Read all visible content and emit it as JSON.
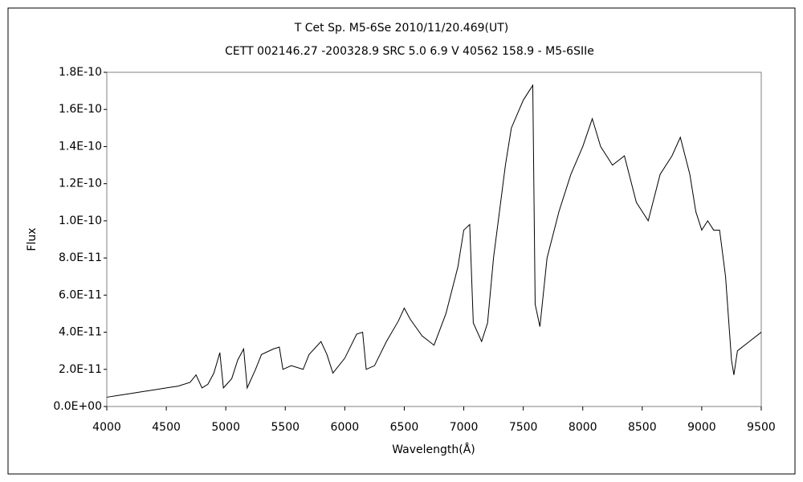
{
  "chart_data": {
    "type": "line",
    "title": "T Cet     Sp. M5-6Se    2010/11/20.469(UT)",
    "subtitle": "CETT 002146.27 -200328.9 SRC 5.0 6.9 V 40562 158.9 - M5-6SIIe",
    "x_label": "Wavelength(Å)",
    "y_label": "Flux",
    "x": [
      4000,
      4100,
      4200,
      4300,
      4400,
      4500,
      4600,
      4700,
      4750,
      4800,
      4850,
      4900,
      4950,
      4980,
      5050,
      5100,
      5150,
      5180,
      5250,
      5300,
      5400,
      5450,
      5480,
      5550,
      5650,
      5700,
      5800,
      5850,
      5900,
      6000,
      6100,
      6150,
      6180,
      6250,
      6350,
      6450,
      6500,
      6550,
      6650,
      6750,
      6850,
      6950,
      7000,
      7050,
      7080,
      7150,
      7200,
      7250,
      7350,
      7400,
      7500,
      7580,
      7600,
      7640,
      7700,
      7800,
      7900,
      8000,
      8080,
      8150,
      8250,
      8350,
      8450,
      8550,
      8650,
      8750,
      8820,
      8900,
      8950,
      9000,
      9050,
      9100,
      9150,
      9200,
      9250,
      9270,
      9300,
      9400,
      9500
    ],
    "series": [
      {
        "name": "Flux",
        "color": "#000000",
        "values": [
          5e-12,
          6e-12,
          7e-12,
          8e-12,
          9e-12,
          1e-11,
          1.1e-11,
          1.3e-11,
          1.7e-11,
          1e-11,
          1.2e-11,
          1.8e-11,
          2.9e-11,
          1e-11,
          1.5e-11,
          2.5e-11,
          3.1e-11,
          1e-11,
          2e-11,
          2.8e-11,
          3.1e-11,
          3.2e-11,
          2e-11,
          2.2e-11,
          2e-11,
          2.8e-11,
          3.5e-11,
          2.8e-11,
          1.8e-11,
          2.6e-11,
          3.9e-11,
          4e-11,
          2e-11,
          2.2e-11,
          3.5e-11,
          4.6e-11,
          5.3e-11,
          4.7e-11,
          3.8e-11,
          3.3e-11,
          5e-11,
          7.5e-11,
          9.5e-11,
          9.8e-11,
          4.5e-11,
          3.5e-11,
          4.5e-11,
          8e-11,
          1.3e-10,
          1.5e-10,
          1.65e-10,
          1.73e-10,
          5.5e-11,
          4.3e-11,
          8e-11,
          1.05e-10,
          1.25e-10,
          1.4e-10,
          1.55e-10,
          1.4e-10,
          1.3e-10,
          1.35e-10,
          1.1e-10,
          1e-10,
          1.25e-10,
          1.35e-10,
          1.45e-10,
          1.25e-10,
          1.05e-10,
          9.5e-11,
          1e-10,
          9.5e-11,
          9.5e-11,
          7e-11,
          2.5e-11,
          1.7e-11,
          3e-11,
          3.5e-11,
          4e-11
        ]
      }
    ],
    "xlim": [
      4000,
      9500
    ],
    "xticks": [
      4000,
      4500,
      5000,
      5500,
      6000,
      6500,
      7000,
      7500,
      8000,
      8500,
      9000,
      9500
    ],
    "ylim": [
      0,
      1.8e-10
    ],
    "yticks": [
      {
        "value": 0,
        "label": "0.0E+00"
      },
      {
        "value": 2e-11,
        "label": "2.0E-11"
      },
      {
        "value": 4e-11,
        "label": "4.0E-11"
      },
      {
        "value": 6e-11,
        "label": "6.0E-11"
      },
      {
        "value": 8e-11,
        "label": "8.0E-11"
      },
      {
        "value": 1e-10,
        "label": "1.0E-10"
      },
      {
        "value": 1.2e-10,
        "label": "1.2E-10"
      },
      {
        "value": 1.4e-10,
        "label": "1.4E-10"
      },
      {
        "value": 1.6e-10,
        "label": "1.6E-10"
      },
      {
        "value": 1.8e-10,
        "label": "1.8E-10"
      }
    ],
    "grid": false
  }
}
